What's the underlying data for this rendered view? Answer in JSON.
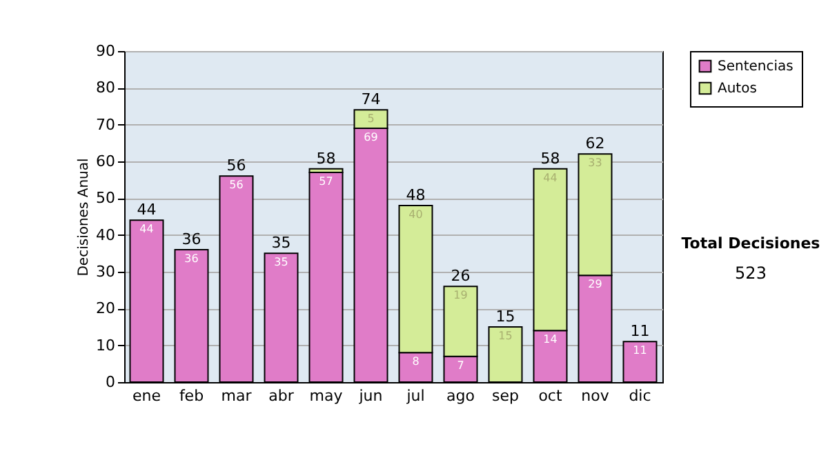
{
  "chart_data": {
    "type": "bar",
    "stacked": true,
    "ylabel": "Decisiones Anual",
    "categories": [
      "ene",
      "feb",
      "mar",
      "abr",
      "may",
      "jun",
      "jul",
      "ago",
      "sep",
      "oct",
      "nov",
      "dic"
    ],
    "series": [
      {
        "name": "Sentencias",
        "color": "#e07cc8",
        "values": [
          44,
          36,
          56,
          35,
          57,
          69,
          8,
          7,
          0,
          14,
          29,
          11
        ],
        "value_labels": [
          "44",
          "36",
          "56",
          "35",
          "57",
          "69",
          "8",
          "7",
          null,
          "14",
          "29",
          "11"
        ]
      },
      {
        "name": "Autos",
        "color": "#d4ec98",
        "values": [
          0,
          0,
          0,
          0,
          1,
          5,
          40,
          19,
          15,
          44,
          33,
          0
        ],
        "value_labels": [
          null,
          null,
          null,
          null,
          null,
          "5",
          "40",
          "19",
          "15",
          "44",
          "33",
          null
        ]
      }
    ],
    "totals": [
      "44",
      "36",
      "56",
      "35",
      "58",
      "74",
      "48",
      "26",
      "15",
      "58",
      "62",
      "11"
    ],
    "ylim": [
      0,
      90
    ],
    "yticks": [
      0,
      10,
      20,
      30,
      40,
      50,
      60,
      70,
      80,
      90
    ],
    "grid": "y",
    "legend": "right",
    "annotations": [
      "Total Decisiones",
      "523"
    ]
  }
}
